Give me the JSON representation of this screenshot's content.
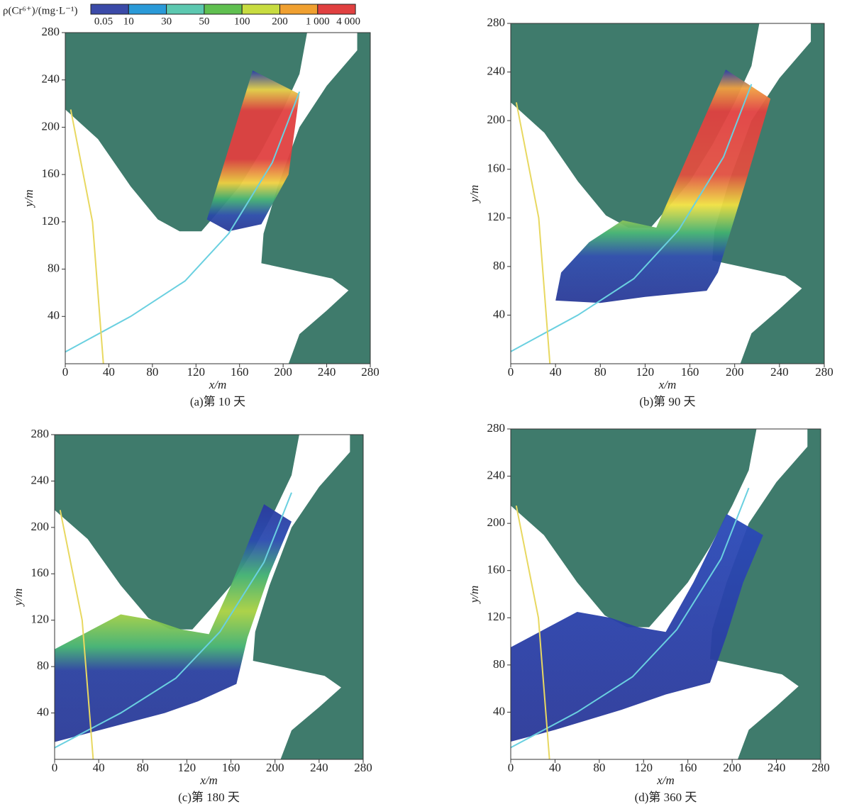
{
  "colorbar": {
    "label": "ρ(Cr⁶⁺)/(mg·L⁻¹)",
    "ticks": [
      0.05,
      10,
      30,
      50,
      100,
      200,
      {
        "value": 1000,
        "label": "1 000"
      },
      {
        "value": 4000,
        "label": "4 000"
      }
    ]
  },
  "panels": [
    {
      "caption": "(a)第 10 天",
      "xlabel": "x/m",
      "ylabel": "y/m",
      "xlim": [
        0,
        280
      ],
      "ylim": [
        0,
        280
      ],
      "xticks": [
        0,
        40,
        80,
        120,
        160,
        200,
        240,
        280
      ],
      "yticks": [
        40,
        80,
        120,
        160,
        200,
        240,
        280
      ]
    },
    {
      "caption": "(b)第 90 天",
      "xlabel": "x/m",
      "ylabel": "y/m",
      "xlim": [
        0,
        280
      ],
      "ylim": [
        0,
        280
      ],
      "xticks": [
        0,
        40,
        80,
        120,
        160,
        200,
        240,
        280
      ],
      "yticks": [
        40,
        80,
        120,
        160,
        200,
        240,
        280
      ]
    },
    {
      "caption": "(c)第 180 天",
      "xlabel": "x/m",
      "ylabel": "y/m",
      "xlim": [
        0,
        280
      ],
      "ylim": [
        0,
        280
      ],
      "xticks": [
        0,
        40,
        80,
        120,
        160,
        200,
        240,
        280
      ],
      "yticks": [
        40,
        80,
        120,
        160,
        200,
        240,
        280
      ]
    },
    {
      "caption": "(d)第 360 天",
      "xlabel": "x/m",
      "ylabel": "y/m",
      "xlim": [
        0,
        280
      ],
      "ylim": [
        0,
        280
      ],
      "xticks": [
        0,
        40,
        80,
        120,
        160,
        200,
        240,
        280
      ],
      "yticks": [
        40,
        80,
        120,
        160,
        200,
        240,
        280
      ]
    }
  ]
}
